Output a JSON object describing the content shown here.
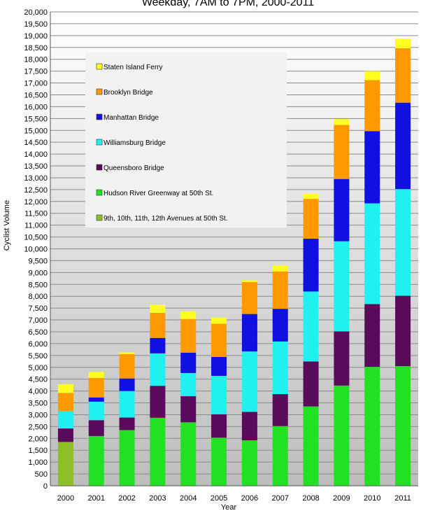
{
  "chart_data": {
    "type": "bar",
    "stacked": true,
    "title": "Weekday, 7AM to 7PM, 2000-2011",
    "xlabel": "Year",
    "ylabel": "Cyclist Volume",
    "ylim": [
      0,
      20000
    ],
    "ytick_step": 500,
    "grid": true,
    "legend_position": "top-left",
    "categories": [
      "2000",
      "2001",
      "2002",
      "2003",
      "2004",
      "2005",
      "2006",
      "2007",
      "2008",
      "2009",
      "2010",
      "2011"
    ],
    "series": [
      {
        "name": "9th, 10th, 11th, 12th Avenues at 50th St.",
        "color": "#8cbf26",
        "values": [
          1850,
          0,
          0,
          0,
          0,
          0,
          0,
          0,
          0,
          0,
          0,
          0
        ]
      },
      {
        "name": "Hudson River Greenway at 50th St.",
        "color": "#22e022",
        "values": [
          0,
          2100,
          2350,
          2870,
          2680,
          2030,
          1920,
          2520,
          3350,
          4230,
          5020,
          5050
        ]
      },
      {
        "name": "Queensboro Bridge",
        "color": "#5a0a5a",
        "values": [
          570,
          670,
          530,
          1350,
          1100,
          990,
          1200,
          1350,
          1900,
          2290,
          2650,
          2970
        ]
      },
      {
        "name": "Williamsburg Bridge",
        "color": "#20f0f0",
        "values": [
          730,
          780,
          1120,
          1370,
          980,
          1620,
          2550,
          2220,
          2950,
          3800,
          4250,
          4500
        ]
      },
      {
        "name": "Manhattan Bridge",
        "color": "#1010e0",
        "values": [
          0,
          180,
          530,
          650,
          860,
          800,
          1580,
          1380,
          2230,
          2630,
          3050,
          3650
        ]
      },
      {
        "name": "Brooklyn Bridge",
        "color": "#ff9900",
        "values": [
          770,
          820,
          1030,
          1060,
          1420,
          1400,
          1350,
          1580,
          1680,
          2280,
          2150,
          2300
        ]
      },
      {
        "name": "Staten Island Ferry",
        "color": "#ffff22",
        "values": [
          370,
          260,
          70,
          350,
          320,
          260,
          70,
          250,
          220,
          250,
          380,
          400
        ]
      }
    ]
  }
}
